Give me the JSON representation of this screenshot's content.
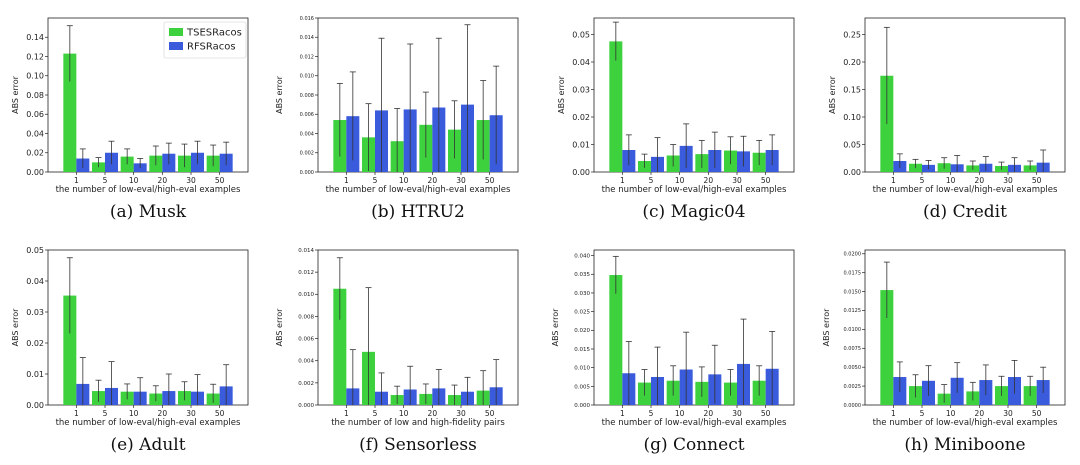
{
  "colors": {
    "series1": "#3ed13e",
    "series2": "#3a5bdc",
    "errorbar": "#333333",
    "axis": "#222222"
  },
  "legend": {
    "labels": [
      "TSESRacos",
      "RFSRacos"
    ],
    "placement": "top-right",
    "panel": "a"
  },
  "chart_data": [
    {
      "id": "a",
      "type": "bar",
      "caption": "(a) Musk",
      "xlabel": "the number of low-eval/high-eval examples",
      "ylabel": "ABS error",
      "categories": [
        "1",
        "5",
        "10",
        "20",
        "30",
        "50"
      ],
      "ylim": [
        0,
        0.16
      ],
      "yticks": [
        0.0,
        0.02,
        0.04,
        0.06,
        0.08,
        0.1,
        0.12,
        0.14
      ],
      "ytick_labels": [
        "0.00",
        "0.02",
        "0.04",
        "0.06",
        "0.08",
        "0.10",
        "0.12",
        "0.14"
      ],
      "series": [
        {
          "name": "TSESRacos",
          "values": [
            0.123,
            0.01,
            0.016,
            0.017,
            0.017,
            0.017
          ],
          "errors": [
            0.029,
            0.005,
            0.008,
            0.01,
            0.012,
            0.011
          ]
        },
        {
          "name": "RFSRacos",
          "values": [
            0.014,
            0.02,
            0.009,
            0.019,
            0.02,
            0.019
          ],
          "errors": [
            0.01,
            0.012,
            0.005,
            0.011,
            0.012,
            0.012
          ]
        }
      ]
    },
    {
      "id": "b",
      "type": "bar",
      "caption": "(b) HTRU2",
      "xlabel": "the number of low-eval/high-eval examples",
      "ylabel": "ABS error",
      "categories": [
        "1",
        "5",
        "10",
        "20",
        "30",
        "50"
      ],
      "ylim": [
        0,
        0.016
      ],
      "yticks": [
        0,
        0.002,
        0.004,
        0.006,
        0.008,
        0.01,
        0.012,
        0.014,
        0.016
      ],
      "ytick_labels": [
        "0.000",
        "0.002",
        "0.004",
        "0.006",
        "0.008",
        "0.010",
        "0.012",
        "0.014",
        "0.016"
      ],
      "series": [
        {
          "name": "TSESRacos",
          "values": [
            0.0054,
            0.0036,
            0.0032,
            0.0049,
            0.0044,
            0.0054
          ],
          "errors": [
            0.0038,
            0.0035,
            0.0034,
            0.0034,
            0.003,
            0.0041
          ]
        },
        {
          "name": "RFSRacos",
          "values": [
            0.0058,
            0.0064,
            0.0065,
            0.0067,
            0.007,
            0.0059
          ],
          "errors": [
            0.0046,
            0.0075,
            0.0068,
            0.0072,
            0.0083,
            0.0051
          ]
        }
      ]
    },
    {
      "id": "c",
      "type": "bar",
      "caption": "(c) Magic04",
      "xlabel": "the number of low-eval/high-eval examples",
      "ylabel": "ABS error",
      "categories": [
        "1",
        "5",
        "10",
        "20",
        "30",
        "50"
      ],
      "ylim": [
        0,
        0.056
      ],
      "yticks": [
        0,
        0.01,
        0.02,
        0.03,
        0.04,
        0.05
      ],
      "ytick_labels": [
        "0.00",
        "0.01",
        "0.02",
        "0.03",
        "0.04",
        "0.05"
      ],
      "series": [
        {
          "name": "TSESRacos",
          "values": [
            0.0475,
            0.004,
            0.006,
            0.0065,
            0.0078,
            0.007
          ],
          "errors": [
            0.007,
            0.0025,
            0.004,
            0.005,
            0.005,
            0.0045
          ]
        },
        {
          "name": "RFSRacos",
          "values": [
            0.008,
            0.0055,
            0.0095,
            0.008,
            0.0075,
            0.008
          ],
          "errors": [
            0.0055,
            0.007,
            0.008,
            0.0065,
            0.0055,
            0.0055
          ]
        }
      ]
    },
    {
      "id": "d",
      "type": "bar",
      "caption": "(d) Credit",
      "xlabel": "the number of low-eval/high-eval examples",
      "ylabel": "ABS error",
      "categories": [
        "1",
        "5",
        "10",
        "20",
        "30",
        "50"
      ],
      "ylim": [
        0,
        0.28
      ],
      "yticks": [
        0,
        0.05,
        0.1,
        0.15,
        0.2,
        0.25
      ],
      "ytick_labels": [
        "0.00",
        "0.05",
        "0.10",
        "0.15",
        "0.20",
        "0.25"
      ],
      "series": [
        {
          "name": "TSESRacos",
          "values": [
            0.175,
            0.015,
            0.016,
            0.012,
            0.011,
            0.012
          ],
          "errors": [
            0.088,
            0.008,
            0.01,
            0.008,
            0.007,
            0.008
          ]
        },
        {
          "name": "RFSRacos",
          "values": [
            0.02,
            0.013,
            0.014,
            0.015,
            0.013,
            0.017
          ],
          "errors": [
            0.013,
            0.008,
            0.016,
            0.013,
            0.013,
            0.023
          ]
        }
      ]
    },
    {
      "id": "e",
      "type": "bar",
      "caption": "(e) Adult",
      "xlabel": "the number of low-eval/high-eval examples",
      "ylabel": "ABS error",
      "categories": [
        "1",
        "5",
        "10",
        "20",
        "30",
        "50"
      ],
      "ylim": [
        0,
        0.05
      ],
      "yticks": [
        0,
        0.01,
        0.02,
        0.03,
        0.04,
        0.05
      ],
      "ytick_labels": [
        "0.00",
        "0.01",
        "0.02",
        "0.03",
        "0.04",
        "0.05"
      ],
      "series": [
        {
          "name": "TSESRacos",
          "values": [
            0.0353,
            0.0045,
            0.0043,
            0.0037,
            0.0045,
            0.0037
          ],
          "errors": [
            0.0122,
            0.0035,
            0.0025,
            0.0025,
            0.003,
            0.003
          ]
        },
        {
          "name": "RFSRacos",
          "values": [
            0.0068,
            0.0055,
            0.0043,
            0.0045,
            0.0043,
            0.006
          ],
          "errors": [
            0.0085,
            0.0085,
            0.0045,
            0.0055,
            0.0055,
            0.007
          ]
        }
      ]
    },
    {
      "id": "f",
      "type": "bar",
      "caption": "(f) Sensorless",
      "xlabel": "the number of low and high-fidelity pairs",
      "ylabel": "ABS error",
      "categories": [
        "1",
        "5",
        "10",
        "20",
        "30",
        "50"
      ],
      "ylim": [
        0,
        0.014
      ],
      "yticks": [
        0,
        0.002,
        0.004,
        0.006,
        0.008,
        0.01,
        0.012,
        0.014
      ],
      "ytick_labels": [
        "0.000",
        "0.002",
        "0.004",
        "0.006",
        "0.008",
        "0.010",
        "0.012",
        "0.014"
      ],
      "series": [
        {
          "name": "TSESRacos",
          "values": [
            0.0105,
            0.0048,
            0.0009,
            0.001,
            0.0009,
            0.0013
          ],
          "errors": [
            0.0028,
            0.0058,
            0.0008,
            0.0009,
            0.0009,
            0.0018
          ]
        },
        {
          "name": "RFSRacos",
          "values": [
            0.0015,
            0.0012,
            0.0014,
            0.0015,
            0.0012,
            0.0016
          ],
          "errors": [
            0.0035,
            0.0017,
            0.0021,
            0.0017,
            0.0013,
            0.0025
          ]
        }
      ]
    },
    {
      "id": "g",
      "type": "bar",
      "caption": "(g) Connect",
      "xlabel": "the number of low-eval/high-eval examples",
      "ylabel": "ABS error",
      "categories": [
        "1",
        "5",
        "10",
        "20",
        "30",
        "50"
      ],
      "ylim": [
        0,
        0.0415
      ],
      "yticks": [
        0,
        0.005,
        0.01,
        0.015,
        0.02,
        0.025,
        0.03,
        0.035,
        0.04
      ],
      "ytick_labels": [
        "0.000",
        "0.005",
        "0.010",
        "0.015",
        "0.020",
        "0.025",
        "0.030",
        "0.035",
        "0.040"
      ],
      "series": [
        {
          "name": "TSESRacos",
          "values": [
            0.0348,
            0.006,
            0.0065,
            0.0062,
            0.006,
            0.0065
          ],
          "errors": [
            0.005,
            0.0035,
            0.004,
            0.004,
            0.0035,
            0.004
          ]
        },
        {
          "name": "RFSRacos",
          "values": [
            0.0085,
            0.0075,
            0.0095,
            0.0082,
            0.011,
            0.0097
          ],
          "errors": [
            0.0085,
            0.008,
            0.01,
            0.0078,
            0.012,
            0.01
          ]
        }
      ]
    },
    {
      "id": "h",
      "type": "bar",
      "caption": "(h) Miniboone",
      "xlabel": "the number of low-eval/high-eval examples",
      "ylabel": "ABS error",
      "categories": [
        "1",
        "5",
        "10",
        "20",
        "30",
        "50"
      ],
      "ylim": [
        0,
        0.0205
      ],
      "yticks": [
        0,
        0.0025,
        0.005,
        0.0075,
        0.01,
        0.0125,
        0.015,
        0.0175,
        0.02
      ],
      "ytick_labels": [
        "0.0000",
        "0.0025",
        "0.0050",
        "0.0075",
        "0.0100",
        "0.0125",
        "0.0150",
        "0.0175",
        "0.0200"
      ],
      "series": [
        {
          "name": "TSESRacos",
          "values": [
            0.0152,
            0.0025,
            0.0015,
            0.0018,
            0.0025,
            0.0025
          ],
          "errors": [
            0.0037,
            0.0015,
            0.0012,
            0.0012,
            0.0013,
            0.0013
          ]
        },
        {
          "name": "RFSRacos",
          "values": [
            0.0037,
            0.0032,
            0.0036,
            0.0033,
            0.0037,
            0.0033
          ],
          "errors": [
            0.002,
            0.002,
            0.002,
            0.002,
            0.0022,
            0.0017
          ]
        }
      ]
    }
  ]
}
